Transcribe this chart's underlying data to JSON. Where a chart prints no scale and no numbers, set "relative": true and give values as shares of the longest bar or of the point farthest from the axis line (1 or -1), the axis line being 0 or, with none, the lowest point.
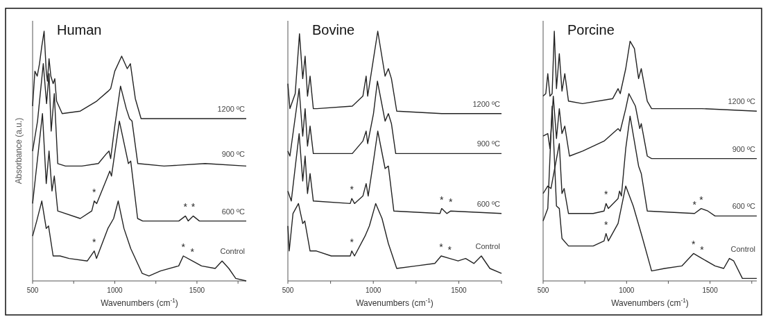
{
  "chart_data": [
    {
      "type": "line",
      "title": "Human",
      "xlabel": "Wavenumbers (cm$^{-1}$)",
      "ylabel": "Absorbance (a.u.)",
      "relative": true,
      "xlim": [
        500,
        1800
      ],
      "xticks": [
        500,
        1000,
        1500,
        {
          "value": 750,
          "label": null
        },
        {
          "value": 1250,
          "label": null
        },
        {
          "value": 1750,
          "label": null
        }
      ],
      "grid": false,
      "marker": "none",
      "line_style": "solid",
      "series": [
        {
          "name": "1200 ºC",
          "color": "#222222",
          "x": [
            500,
            514,
            528,
            542,
            556,
            570,
            583,
            590,
            600,
            611,
            625,
            635,
            646,
            680,
            790,
            890,
            960,
            975,
            1000,
            1042,
            1076,
            1095,
            1125,
            1160,
            1300,
            1550,
            1800
          ],
          "values": [
            0.7,
            0.84,
            0.82,
            0.87,
            0.94,
            1.0,
            0.84,
            0.8,
            0.89,
            0.82,
            0.79,
            0.81,
            0.72,
            0.67,
            0.68,
            0.72,
            0.76,
            0.77,
            0.84,
            0.9,
            0.85,
            0.87,
            0.73,
            0.65,
            0.65,
            0.65,
            0.65
          ]
        },
        {
          "name": "900 ºC",
          "color": "#222222",
          "x": [
            500,
            530,
            565,
            585,
            600,
            613,
            632,
            653,
            700,
            800,
            900,
            950,
            965,
            975,
            1000,
            1035,
            1070,
            1090,
            1105,
            1140,
            1300,
            1550,
            1800
          ],
          "values": [
            0.52,
            0.64,
            0.87,
            0.71,
            0.83,
            0.6,
            0.75,
            0.47,
            0.46,
            0.46,
            0.47,
            0.51,
            0.52,
            0.49,
            0.62,
            0.78,
            0.69,
            0.65,
            0.64,
            0.47,
            0.46,
            0.47,
            0.46
          ]
        },
        {
          "name": "600 ºC",
          "color": "#222222",
          "x": [
            500,
            535,
            560,
            583,
            600,
            618,
            632,
            653,
            790,
            860,
            875,
            890,
            958,
            970,
            980,
            1028,
            1083,
            1097,
            1139,
            1170,
            1390,
            1430,
            1447,
            1477,
            1515,
            1800
          ],
          "values": [
            0.31,
            0.52,
            0.67,
            0.39,
            0.52,
            0.36,
            0.42,
            0.28,
            0.25,
            0.28,
            0.32,
            0.31,
            0.42,
            0.44,
            0.42,
            0.64,
            0.47,
            0.48,
            0.25,
            0.24,
            0.24,
            0.26,
            0.24,
            0.26,
            0.24,
            0.24
          ]
        },
        {
          "name": "Control",
          "color": "#222222",
          "x": [
            500,
            525,
            556,
            583,
            597,
            625,
            667,
            722,
            833,
            875,
            889,
            958,
            993,
            1021,
            1056,
            1097,
            1167,
            1208,
            1278,
            1389,
            1417,
            1472,
            1528,
            1611,
            1653,
            1694,
            1736,
            1800
          ],
          "values": [
            0.18,
            0.24,
            0.32,
            0.21,
            0.22,
            0.1,
            0.1,
            0.09,
            0.08,
            0.12,
            0.09,
            0.21,
            0.25,
            0.32,
            0.21,
            0.13,
            0.03,
            0.02,
            0.04,
            0.06,
            0.1,
            0.08,
            0.06,
            0.05,
            0.08,
            0.05,
            0.01,
            0.0
          ]
        }
      ],
      "annotations": [
        {
          "text": "*",
          "x": 875,
          "y": 0.32
        },
        {
          "text": "*",
          "x": 1430,
          "y": 0.26
        },
        {
          "text": "*",
          "x": 1477,
          "y": 0.26
        },
        {
          "text": "*",
          "x": 875,
          "y": 0.12
        },
        {
          "text": "*",
          "x": 1417,
          "y": 0.1
        },
        {
          "text": "*",
          "x": 1472,
          "y": 0.08
        }
      ]
    },
    {
      "type": "line",
      "title": "Bovine",
      "xlabel": "Wavenumbers (cm$^{-1}$)",
      "relative": true,
      "xlim": [
        500,
        1750
      ],
      "xticks": [
        500,
        1000,
        1500,
        {
          "value": 750,
          "label": null
        },
        {
          "value": 1250,
          "label": null
        },
        {
          "value": 1750,
          "label": null
        }
      ],
      "grid": false,
      "marker": "none",
      "line_style": "solid",
      "series": [
        {
          "name": "1200 ºC",
          "color": "#222222",
          "x": [
            500,
            512,
            543,
            568,
            587,
            601,
            615,
            630,
            649,
            670,
            877,
            939,
            958,
            967,
            1001,
            1026,
            1069,
            1088,
            1106,
            1137,
            1400,
            1750
          ],
          "values": [
            0.79,
            0.69,
            0.75,
            0.99,
            0.81,
            0.9,
            0.74,
            0.82,
            0.69,
            0.69,
            0.7,
            0.74,
            0.82,
            0.74,
            0.89,
            1.0,
            0.82,
            0.85,
            0.81,
            0.68,
            0.67,
            0.67
          ]
        },
        {
          "name": "900 ºC",
          "color": "#222222",
          "x": [
            500,
            512,
            566,
            587,
            601,
            615,
            630,
            649,
            877,
            939,
            958,
            967,
            1001,
            1024,
            1069,
            1088,
            1106,
            1131,
            1400,
            1750
          ],
          "values": [
            0.52,
            0.5,
            0.77,
            0.58,
            0.69,
            0.54,
            0.62,
            0.51,
            0.51,
            0.56,
            0.6,
            0.55,
            0.67,
            0.8,
            0.64,
            0.67,
            0.63,
            0.51,
            0.51,
            0.51
          ]
        },
        {
          "name": "600 ºC",
          "color": "#222222",
          "x": [
            500,
            520,
            566,
            587,
            601,
            615,
            630,
            649,
            865,
            874,
            890,
            939,
            958,
            970,
            1001,
            1026,
            1069,
            1088,
            1120,
            1390,
            1400,
            1430,
            1453,
            1750
          ],
          "values": [
            0.36,
            0.32,
            0.59,
            0.4,
            0.5,
            0.35,
            0.43,
            0.32,
            0.31,
            0.33,
            0.31,
            0.34,
            0.39,
            0.34,
            0.48,
            0.6,
            0.45,
            0.46,
            0.28,
            0.27,
            0.29,
            0.27,
            0.28,
            0.27
          ]
        },
        {
          "name": "Control",
          "color": "#222222",
          "x": [
            500,
            508,
            530,
            562,
            587,
            599,
            630,
            667,
            754,
            865,
            874,
            890,
            952,
            977,
            1014,
            1051,
            1088,
            1137,
            1249,
            1360,
            1397,
            1447,
            1496,
            1540,
            1589,
            1632,
            1682,
            1750
          ],
          "values": [
            0.22,
            0.12,
            0.27,
            0.31,
            0.23,
            0.24,
            0.12,
            0.12,
            0.1,
            0.1,
            0.12,
            0.1,
            0.18,
            0.22,
            0.31,
            0.25,
            0.15,
            0.05,
            0.06,
            0.07,
            0.1,
            0.09,
            0.08,
            0.09,
            0.07,
            0.1,
            0.05,
            0.03
          ]
        }
      ],
      "annotations": [
        {
          "text": "*",
          "x": 874,
          "y": 0.33
        },
        {
          "text": "*",
          "x": 1400,
          "y": 0.29
        },
        {
          "text": "*",
          "x": 1453,
          "y": 0.28
        },
        {
          "text": "*",
          "x": 874,
          "y": 0.12
        },
        {
          "text": "*",
          "x": 1397,
          "y": 0.1
        },
        {
          "text": "*",
          "x": 1447,
          "y": 0.09
        }
      ]
    },
    {
      "type": "line",
      "title": "Porcine",
      "xlabel": "Wavenumbers (cm$^{-1}$)",
      "relative": true,
      "xlim": [
        500,
        1780
      ],
      "xticks": [
        500,
        1000,
        1500,
        {
          "value": 750,
          "label": null
        },
        {
          "value": 1250,
          "label": null
        },
        {
          "value": 1750,
          "label": null
        }
      ],
      "grid": false,
      "marker": "none",
      "line_style": "solid",
      "series": [
        {
          "name": "1200 ºC",
          "color": "#222222",
          "x": [
            500,
            516,
            528,
            541,
            554,
            567,
            580,
            597,
            613,
            630,
            652,
            736,
            917,
            949,
            962,
            995,
            1021,
            1047,
            1072,
            1088,
            1124,
            1150,
            1450,
            1780
          ],
          "values": [
            0.74,
            0.75,
            0.83,
            0.74,
            0.75,
            1.0,
            0.77,
            0.91,
            0.76,
            0.83,
            0.72,
            0.71,
            0.73,
            0.77,
            0.75,
            0.85,
            0.96,
            0.93,
            0.81,
            0.85,
            0.72,
            0.69,
            0.69,
            0.68
          ]
        },
        {
          "name": "900 ºC",
          "color": "#222222",
          "x": [
            500,
            528,
            541,
            561,
            580,
            597,
            613,
            630,
            658,
            736,
            865,
            949,
            962,
            995,
            1014,
            1053,
            1079,
            1088,
            1124,
            1150,
            1450,
            1780
          ],
          "values": [
            0.58,
            0.59,
            0.53,
            0.74,
            0.57,
            0.69,
            0.59,
            0.62,
            0.5,
            0.52,
            0.56,
            0.61,
            0.6,
            0.69,
            0.75,
            0.7,
            0.61,
            0.63,
            0.5,
            0.49,
            0.49,
            0.49
          ]
        },
        {
          "name": "600 ºC",
          "color": "#222222",
          "x": [
            500,
            528,
            547,
            597,
            613,
            626,
            652,
            800,
            865,
            877,
            891,
            949,
            958,
            969,
            995,
            1021,
            1072,
            1088,
            1124,
            1407,
            1447,
            1487,
            1530,
            1780
          ],
          "values": [
            0.35,
            0.38,
            0.37,
            0.55,
            0.35,
            0.37,
            0.27,
            0.27,
            0.28,
            0.31,
            0.29,
            0.33,
            0.36,
            0.34,
            0.53,
            0.66,
            0.46,
            0.43,
            0.28,
            0.27,
            0.29,
            0.28,
            0.26,
            0.26
          ]
        },
        {
          "name": "Control",
          "color": "#222222",
          "x": [
            500,
            528,
            554,
            580,
            597,
            613,
            652,
            800,
            865,
            877,
            891,
            949,
            995,
            1040,
            1092,
            1150,
            1228,
            1331,
            1401,
            1452,
            1530,
            1582,
            1616,
            1642,
            1694,
            1780
          ],
          "values": [
            0.24,
            0.29,
            0.7,
            0.3,
            0.29,
            0.17,
            0.14,
            0.14,
            0.16,
            0.19,
            0.16,
            0.23,
            0.38,
            0.3,
            0.18,
            0.04,
            0.05,
            0.06,
            0.11,
            0.09,
            0.06,
            0.05,
            0.09,
            0.08,
            0.01,
            0.01
          ]
        }
      ],
      "annotations": [
        {
          "text": "*",
          "x": 877,
          "y": 0.31
        },
        {
          "text": "*",
          "x": 1407,
          "y": 0.27
        },
        {
          "text": "*",
          "x": 1447,
          "y": 0.29
        },
        {
          "text": "*",
          "x": 877,
          "y": 0.19
        },
        {
          "text": "*",
          "x": 1401,
          "y": 0.11
        },
        {
          "text": "*",
          "x": 1452,
          "y": 0.09
        }
      ]
    }
  ]
}
